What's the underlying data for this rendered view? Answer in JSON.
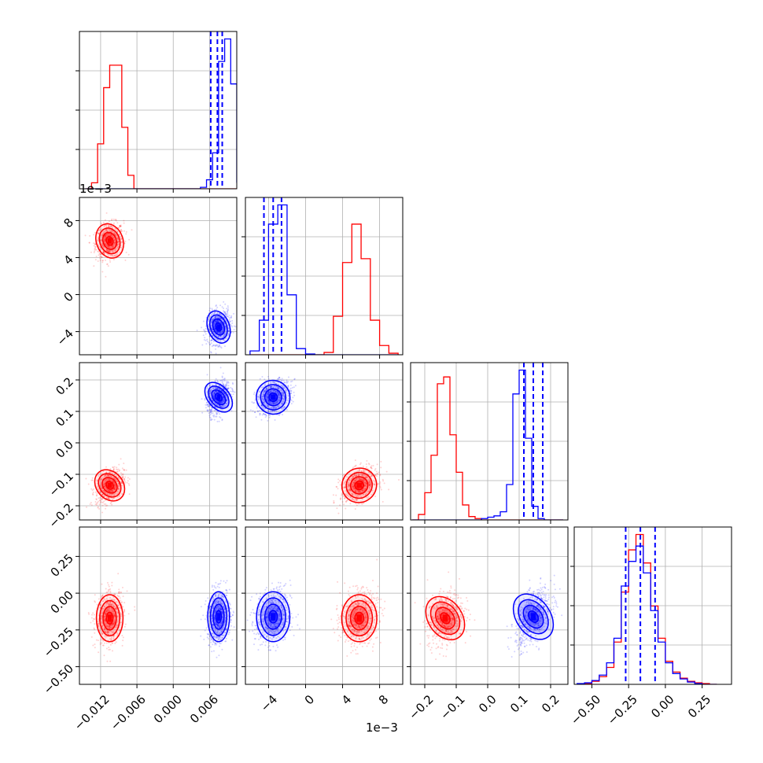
{
  "chart_data": {
    "type": "corner",
    "title": "",
    "grid": true,
    "parameters": [
      {
        "index": 0,
        "range": [
          -0.0155,
          0.0105
        ],
        "ticks": [
          -0.012,
          -0.006,
          0.0,
          0.006
        ],
        "tick_labels": [
          "−0.012",
          "−0.006",
          "0.000",
          "0.006"
        ],
        "offset_label": ""
      },
      {
        "index": 1,
        "range": [
          -0.0065,
          0.0105
        ],
        "ticks": [
          -0.004,
          0.0,
          0.004,
          0.008
        ],
        "tick_labels": [
          "−4",
          "0",
          "4",
          "8"
        ],
        "offset_label": "1e−3"
      },
      {
        "index": 2,
        "range": [
          -0.245,
          0.255
        ],
        "ticks": [
          -0.2,
          -0.1,
          0.0,
          0.1,
          0.2
        ],
        "tick_labels": [
          "−0.2",
          "−0.1",
          "0.0",
          "0.1",
          "0.2"
        ],
        "offset_label": ""
      },
      {
        "index": 3,
        "range": [
          -0.62,
          0.45
        ],
        "ticks": [
          -0.5,
          -0.25,
          0.0,
          0.25
        ],
        "tick_labels": [
          "−0.50",
          "−0.25",
          "0.00",
          "0.25"
        ],
        "offset_label": ""
      }
    ],
    "series": [
      {
        "color": "#ff0000",
        "mean": [
          -0.0105,
          0.0058,
          -0.135,
          -0.17
        ],
        "sd": [
          0.0011,
          0.00095,
          0.027,
          0.08
        ]
      },
      {
        "color": "#0000ff",
        "mean": [
          0.0075,
          -0.0035,
          0.145,
          -0.16
        ],
        "sd": [
          0.0009,
          0.0009,
          0.027,
          0.085
        ]
      }
    ],
    "histograms": [
      {
        "param": 0,
        "bins": [
          -0.0145,
          -0.0135,
          -0.0125,
          -0.0115,
          -0.0105,
          -0.0095,
          -0.0085,
          -0.0075,
          -0.0065,
          -0.0055,
          -0.0045,
          -0.0035,
          -0.0025,
          -0.0015,
          -0.0005,
          0.0005,
          0.0015,
          0.0025,
          0.0035,
          0.0045,
          0.0055,
          0.0065,
          0.0075,
          0.0085,
          0.0095,
          0.0105
        ],
        "red": [
          0,
          8,
          60,
          135,
          165,
          165,
          82,
          18,
          0,
          0,
          0,
          0,
          0,
          0,
          0,
          0,
          0,
          0,
          0,
          0,
          0,
          0,
          0,
          0,
          0
        ],
        "blue": [
          0,
          0,
          0,
          0,
          0,
          0,
          0,
          0,
          0,
          0,
          0,
          0,
          0,
          0,
          0,
          0,
          0,
          0,
          0,
          2,
          12,
          48,
          170,
          200,
          140,
          8
        ]
      },
      {
        "param": 1,
        "bins": [
          -0.006,
          -0.005,
          -0.004,
          -0.003,
          -0.002,
          -0.001,
          0.0,
          0.001,
          0.002,
          0.003,
          0.004,
          0.005,
          0.006,
          0.007,
          0.008,
          0.009,
          0.01
        ],
        "red": [
          0,
          0,
          0,
          0,
          0,
          0,
          0,
          0,
          3,
          50,
          120,
          170,
          125,
          45,
          12,
          2
        ],
        "blue": [
          5,
          45,
          170,
          195,
          78,
          8,
          1,
          0,
          0,
          0,
          0,
          0,
          0,
          0,
          0,
          0
        ]
      },
      {
        "param": 2,
        "bins": [
          -0.24,
          -0.22,
          -0.2,
          -0.18,
          -0.16,
          -0.14,
          -0.12,
          -0.1,
          -0.08,
          -0.06,
          -0.04,
          -0.02,
          0.0,
          0.02,
          0.04,
          0.06,
          0.08,
          0.1,
          0.12,
          0.14,
          0.16,
          0.18,
          0.2,
          0.22,
          0.24
        ],
        "red": [
          0,
          8,
          40,
          95,
          200,
          210,
          125,
          70,
          22,
          5,
          2,
          0,
          0,
          0,
          0,
          0,
          0,
          0,
          0,
          0,
          0,
          0,
          0,
          0
        ],
        "blue": [
          0,
          0,
          0,
          0,
          0,
          0,
          0,
          0,
          0,
          0,
          0,
          2,
          4,
          6,
          12,
          52,
          185,
          220,
          120,
          20,
          2,
          0,
          0,
          0
        ]
      },
      {
        "param": 3,
        "bins": [
          -0.6,
          -0.55,
          -0.5,
          -0.45,
          -0.4,
          -0.35,
          -0.3,
          -0.25,
          -0.2,
          -0.15,
          -0.1,
          -0.05,
          0.0,
          0.05,
          0.1,
          0.15,
          0.2,
          0.25,
          0.3,
          0.35
        ],
        "red": [
          0,
          1,
          4,
          10,
          22,
          55,
          120,
          175,
          195,
          158,
          102,
          60,
          30,
          16,
          8,
          4,
          2,
          1,
          0
        ],
        "blue": [
          1,
          2,
          5,
          12,
          28,
          60,
          128,
          160,
          180,
          145,
          96,
          55,
          28,
          14,
          7,
          3,
          1,
          0,
          0
        ]
      }
    ],
    "quantile_lines": [
      {
        "param": 0,
        "color": "#0000ff",
        "values": [
          0.0062,
          0.0073,
          0.0081
        ]
      },
      {
        "param": 1,
        "color": "#0000ff",
        "values": [
          -0.0045,
          -0.0035,
          -0.0026
        ]
      },
      {
        "param": 2,
        "color": "#0000ff",
        "values": [
          0.115,
          0.145,
          0.175
        ]
      },
      {
        "param": 3,
        "color": "#0000ff",
        "values": [
          -0.27,
          -0.17,
          -0.07
        ]
      }
    ]
  }
}
